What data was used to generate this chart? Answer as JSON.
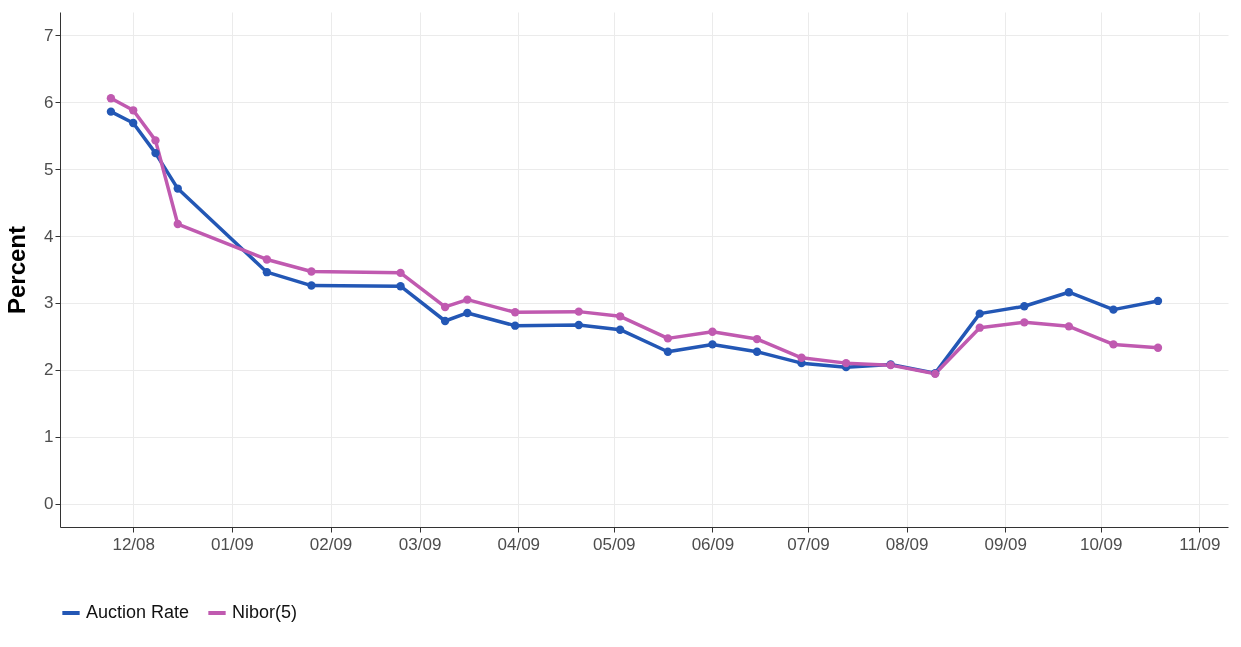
{
  "chart_data": {
    "type": "line",
    "ylabel": "Percent",
    "x": [
      "2008-11-24",
      "2008-12-01",
      "2008-12-08",
      "2008-12-15",
      "2009-01-12",
      "2009-01-26",
      "2009-02-23",
      "2009-03-09",
      "2009-03-16",
      "2009-03-31",
      "2009-04-20",
      "2009-05-03",
      "2009-05-18",
      "2009-06-01",
      "2009-06-15",
      "2009-06-29",
      "2009-07-13",
      "2009-07-27",
      "2009-08-10",
      "2009-08-24",
      "2009-09-07",
      "2009-09-21",
      "2009-10-05",
      "2009-10-19"
    ],
    "series": [
      {
        "name": "Auction Rate",
        "color": "#2357b5",
        "values": [
          5.86,
          5.69,
          5.24,
          4.71,
          3.46,
          3.26,
          3.25,
          2.73,
          2.85,
          2.66,
          2.67,
          2.6,
          2.27,
          2.38,
          2.27,
          2.1,
          2.04,
          2.08,
          1.95,
          2.84,
          2.95,
          3.16,
          2.9,
          3.03
        ]
      },
      {
        "name": "Nibor(5)",
        "color": "#c05ab0",
        "values": [
          6.06,
          5.88,
          5.43,
          4.18,
          3.65,
          3.47,
          3.45,
          2.94,
          3.05,
          2.86,
          2.87,
          2.8,
          2.47,
          2.57,
          2.46,
          2.18,
          2.1,
          2.07,
          1.94,
          2.63,
          2.71,
          2.65,
          2.38,
          2.33
        ]
      }
    ],
    "xlim": [
      "2008-11-08",
      "2009-11-10"
    ],
    "xticks": [
      {
        "value": "2008-12-01",
        "label": "12/08"
      },
      {
        "value": "2009-01-01",
        "label": "01/09"
      },
      {
        "value": "2009-02-01",
        "label": "02/09"
      },
      {
        "value": "2009-03-01",
        "label": "03/09"
      },
      {
        "value": "2009-04-01",
        "label": "04/09"
      },
      {
        "value": "2009-05-01",
        "label": "05/09"
      },
      {
        "value": "2009-06-01",
        "label": "06/09"
      },
      {
        "value": "2009-07-01",
        "label": "07/09"
      },
      {
        "value": "2009-08-01",
        "label": "08/09"
      },
      {
        "value": "2009-09-01",
        "label": "09/09"
      },
      {
        "value": "2009-10-01",
        "label": "10/09"
      },
      {
        "value": "2009-11-01",
        "label": "11/09"
      }
    ],
    "ylim": [
      -0.35,
      7.35
    ],
    "yticks": [
      0,
      1,
      2,
      3,
      4,
      5,
      6,
      7
    ],
    "grid": true,
    "legend": "bottom",
    "marker": "circle",
    "line_style": "solid"
  }
}
